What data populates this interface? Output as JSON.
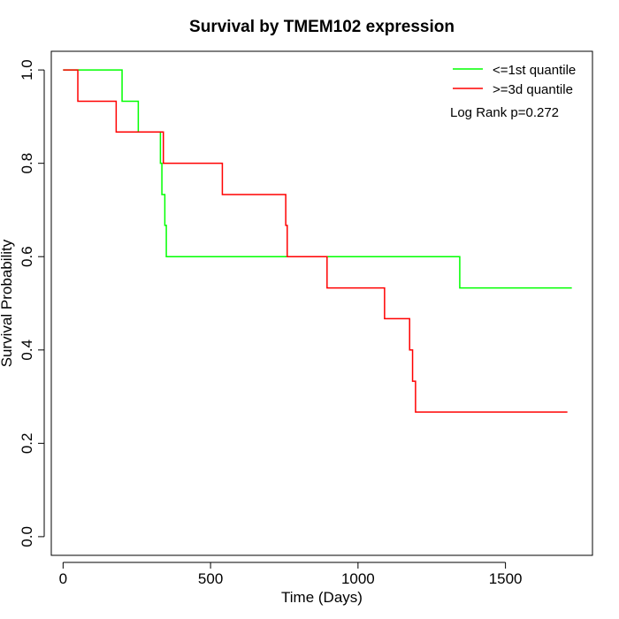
{
  "chart_data": {
    "type": "line",
    "step": true,
    "title": "Survival by TMEM102 expression",
    "xlabel": "Time (Days)",
    "ylabel": "Survival Probability",
    "xlim": [
      -40,
      1795
    ],
    "ylim": [
      -0.04,
      1.04
    ],
    "x_ticks": [
      0,
      500,
      1000,
      1500
    ],
    "y_ticks": [
      0.0,
      0.2,
      0.4,
      0.6,
      0.8,
      1.0
    ],
    "x_tick_labels": [
      "0",
      "500",
      "1000",
      "1500"
    ],
    "y_tick_labels": [
      "0.0",
      "0.2",
      "0.4",
      "0.6",
      "0.8",
      "1.0"
    ],
    "grid": false,
    "legend_position": "top-right",
    "annotation": "Log Rank p=0.272",
    "series": [
      {
        "name": "<=1st quantile",
        "color": "#00ff00",
        "x": [
          0,
          200,
          255,
          330,
          335,
          345,
          350,
          1345,
          1725
        ],
        "y": [
          1.0,
          0.933,
          0.867,
          0.8,
          0.733,
          0.667,
          0.6,
          0.533,
          0.533
        ]
      },
      {
        "name": ">=3d quantile",
        "color": "#ff0000",
        "x": [
          0,
          50,
          180,
          340,
          540,
          755,
          760,
          895,
          1090,
          1175,
          1185,
          1195,
          1710
        ],
        "y": [
          1.0,
          0.933,
          0.867,
          0.8,
          0.733,
          0.667,
          0.6,
          0.533,
          0.467,
          0.4,
          0.333,
          0.267,
          0.267
        ]
      }
    ]
  }
}
